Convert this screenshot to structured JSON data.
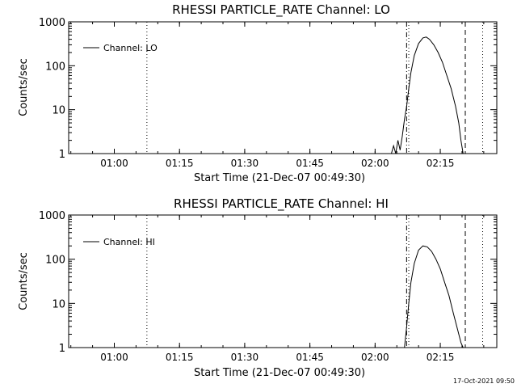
{
  "footer": {
    "timestamp": "17-Oct-2021 09:50"
  },
  "chart_data": [
    {
      "type": "line",
      "title": "RHESSI PARTICLE_RATE Channel: LO",
      "xlabel": "Start Time (21-Dec-07 00:49:30)",
      "ylabel": "Counts/sec",
      "yscale": "log",
      "ylim": [
        1,
        1000
      ],
      "xlim": [
        "00:49:30",
        "02:28:00"
      ],
      "x_ticks": [
        "01:00",
        "01:15",
        "01:30",
        "01:45",
        "02:00",
        "02:15"
      ],
      "y_ticks": [
        "1",
        "10",
        "100",
        "1000"
      ],
      "legend": {
        "position": "top-left",
        "entries": [
          "Channel: LO"
        ]
      },
      "grid": false,
      "vertical_markers": [
        {
          "time": "01:07:30",
          "style": "dotted"
        },
        {
          "time": "02:07:15",
          "style": "dash-dot"
        },
        {
          "time": "02:07:45",
          "style": "dotted"
        },
        {
          "time": "02:20:45",
          "style": "dashed"
        },
        {
          "time": "02:24:45",
          "style": "dotted"
        }
      ],
      "series": [
        {
          "name": "Channel: LO",
          "x": [
            "02:03:45",
            "02:04:15",
            "02:04:45",
            "02:05:15",
            "02:05:45",
            "02:06:15",
            "02:06:45",
            "02:07:15",
            "02:07:45",
            "02:08:15",
            "02:09:00",
            "02:10:00",
            "02:11:00",
            "02:11:45",
            "02:12:30",
            "02:13:30",
            "02:14:30",
            "02:15:30",
            "02:16:30",
            "02:17:30",
            "02:18:30",
            "02:19:15",
            "02:19:45",
            "02:20:15"
          ],
          "y": [
            1,
            1.5,
            1,
            2,
            1.2,
            2.5,
            6,
            12,
            30,
            70,
            170,
            320,
            430,
            450,
            400,
            300,
            200,
            120,
            60,
            30,
            12,
            5,
            2,
            1
          ]
        }
      ]
    },
    {
      "type": "line",
      "title": "RHESSI PARTICLE_RATE Channel: HI",
      "xlabel": "Start Time (21-Dec-07 00:49:30)",
      "ylabel": "Counts/sec",
      "yscale": "log",
      "ylim": [
        1,
        1000
      ],
      "xlim": [
        "00:49:30",
        "02:28:00"
      ],
      "x_ticks": [
        "01:00",
        "01:15",
        "01:30",
        "01:45",
        "02:00",
        "02:15"
      ],
      "y_ticks": [
        "1",
        "10",
        "100",
        "1000"
      ],
      "legend": {
        "position": "top-left",
        "entries": [
          "Channel: HI"
        ]
      },
      "grid": false,
      "vertical_markers": [
        {
          "time": "01:07:30",
          "style": "dotted"
        },
        {
          "time": "02:07:15",
          "style": "dash-dot"
        },
        {
          "time": "02:07:45",
          "style": "dotted"
        },
        {
          "time": "02:20:45",
          "style": "dashed"
        },
        {
          "time": "02:24:45",
          "style": "dotted"
        }
      ],
      "series": [
        {
          "name": "Channel: HI",
          "x": [
            "02:06:45",
            "02:07:15",
            "02:07:45",
            "02:08:15",
            "02:09:00",
            "02:10:00",
            "02:11:00",
            "02:12:00",
            "02:13:00",
            "02:14:00",
            "02:15:00",
            "02:16:00",
            "02:17:00",
            "02:18:00",
            "02:19:00",
            "02:19:45",
            "02:20:15"
          ],
          "y": [
            1,
            3,
            10,
            30,
            80,
            160,
            200,
            190,
            150,
            100,
            60,
            30,
            15,
            6,
            2.5,
            1.3,
            1
          ]
        }
      ]
    }
  ]
}
